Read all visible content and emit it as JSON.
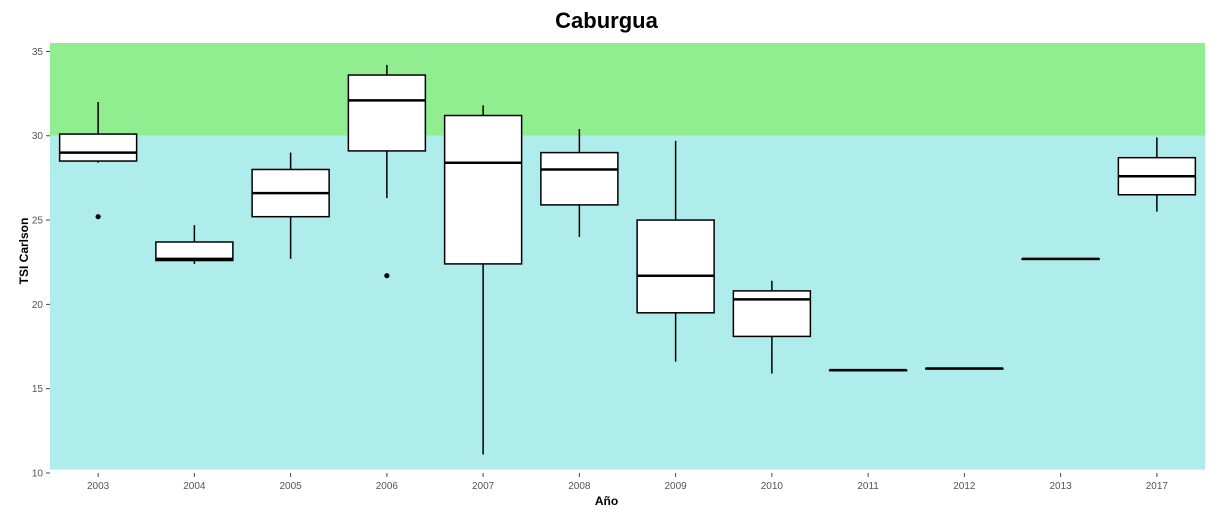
{
  "chart_data": {
    "type": "boxplot",
    "title": "Caburgua",
    "xlabel": "Año",
    "ylabel": "TSI Carlson",
    "ylim": [
      10,
      35.5
    ],
    "yticks": [
      10,
      15,
      20,
      25,
      30,
      35
    ],
    "categories": [
      "2003",
      "2004",
      "2005",
      "2006",
      "2007",
      "2008",
      "2009",
      "2010",
      "2011",
      "2012",
      "2013",
      "2017"
    ],
    "bands": [
      {
        "from": 10.2,
        "to": 30,
        "color": "#afeded"
      },
      {
        "from": 30,
        "to": 35.5,
        "color": "#90ee90"
      }
    ],
    "boxes": [
      {
        "category": "2003",
        "min": 28.4,
        "q1": 28.5,
        "median": 29.0,
        "q3": 30.1,
        "max": 32.0,
        "outliers": [
          25.2
        ]
      },
      {
        "category": "2004",
        "min": 22.4,
        "q1": 22.6,
        "median": 22.7,
        "q3": 23.7,
        "max": 24.7,
        "outliers": []
      },
      {
        "category": "2005",
        "min": 22.7,
        "q1": 25.2,
        "median": 26.6,
        "q3": 28.0,
        "max": 29.0,
        "outliers": []
      },
      {
        "category": "2006",
        "min": 26.3,
        "q1": 29.1,
        "median": 32.1,
        "q3": 33.6,
        "max": 34.2,
        "outliers": [
          21.7
        ]
      },
      {
        "category": "2007",
        "min": 11.1,
        "q1": 22.4,
        "median": 28.4,
        "q3": 31.2,
        "max": 31.8,
        "outliers": []
      },
      {
        "category": "2008",
        "min": 24.0,
        "q1": 25.9,
        "median": 28.0,
        "q3": 29.0,
        "max": 30.4,
        "outliers": []
      },
      {
        "category": "2009",
        "min": 16.6,
        "q1": 19.5,
        "median": 21.7,
        "q3": 25.0,
        "max": 29.7,
        "outliers": []
      },
      {
        "category": "2010",
        "min": 15.9,
        "q1": 18.1,
        "median": 20.3,
        "q3": 20.8,
        "max": 21.4,
        "outliers": []
      },
      {
        "category": "2011",
        "min": 16.1,
        "q1": 16.1,
        "median": 16.1,
        "q3": 16.1,
        "max": 16.1,
        "outliers": []
      },
      {
        "category": "2012",
        "min": 16.2,
        "q1": 16.2,
        "median": 16.2,
        "q3": 16.2,
        "max": 16.2,
        "outliers": []
      },
      {
        "category": "2013",
        "min": 22.7,
        "q1": 22.7,
        "median": 22.7,
        "q3": 22.7,
        "max": 22.7,
        "outliers": []
      },
      {
        "category": "2017",
        "min": 25.5,
        "q1": 26.5,
        "median": 27.6,
        "q3": 28.7,
        "max": 29.9,
        "outliers": []
      }
    ],
    "grid": false,
    "legend": "none"
  }
}
